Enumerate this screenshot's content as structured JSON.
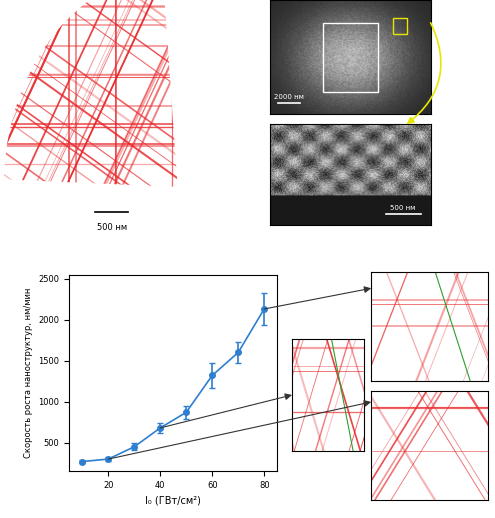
{
  "chart_data": {
    "type": "line",
    "x": [
      10,
      20,
      30,
      40,
      50,
      60,
      70,
      80
    ],
    "values": [
      270,
      300,
      450,
      680,
      870,
      1320,
      1600,
      2130
    ],
    "errors": [
      20,
      20,
      40,
      60,
      80,
      150,
      130,
      200
    ],
    "color": "#2e7fd0",
    "marker": "o",
    "line_style": "solid",
    "xlabel": "I₀ (ГВт/см²)",
    "ylabel": "Скорость роста наноструктур, нм/мин",
    "xlim": [
      5,
      85
    ],
    "xticks": [
      20,
      40,
      60,
      80
    ],
    "ylim": [
      150,
      2550
    ],
    "yticks": [
      500,
      1000,
      1500,
      2000,
      2500
    ],
    "grid": false
  },
  "scale_bars": {
    "pattern": "500 нм",
    "sem_overview": "2000 нм",
    "sem_detail": "500 нм"
  }
}
